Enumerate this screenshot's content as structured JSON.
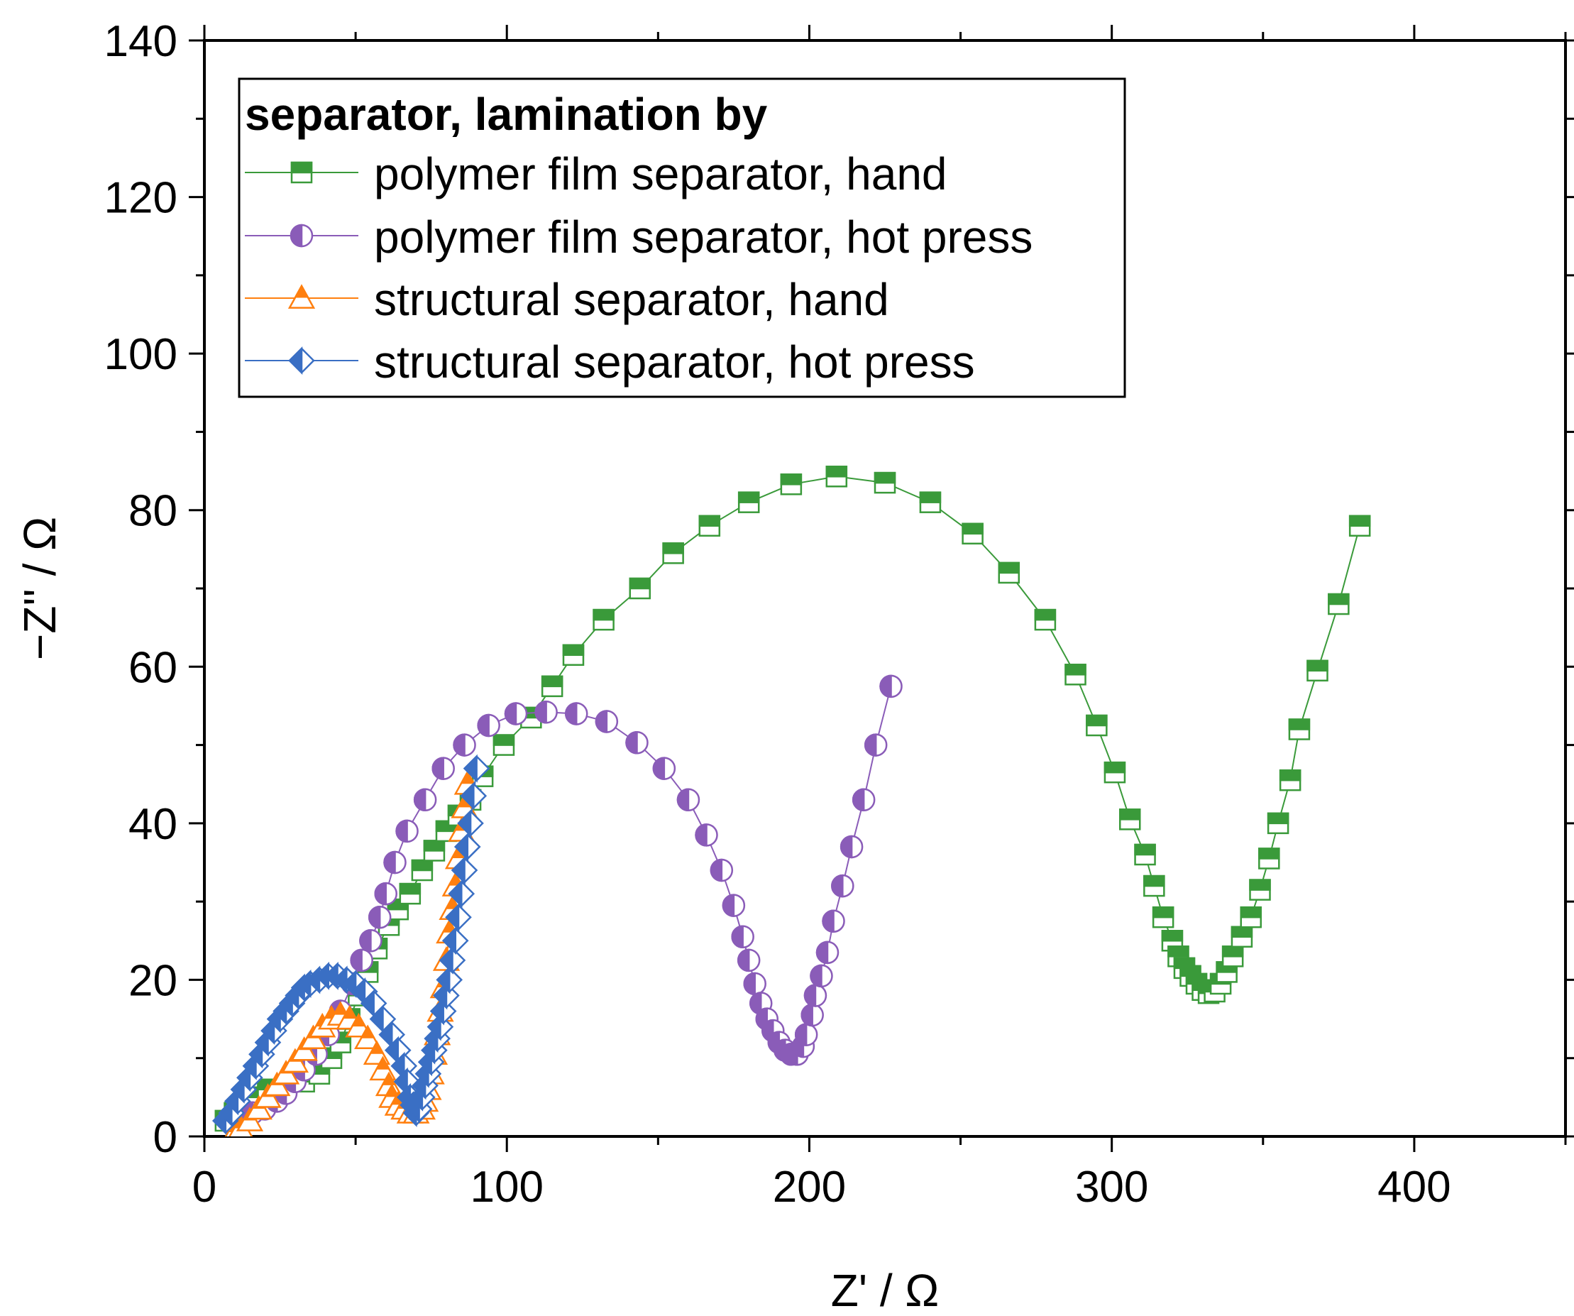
{
  "chart_data": {
    "type": "scatter",
    "title": "",
    "xlabel": "Z' / Ω",
    "ylabel": "−Z'' / Ω",
    "xlim": [
      0,
      450
    ],
    "ylim": [
      0,
      140
    ],
    "x_major_ticks": [
      0,
      100,
      200,
      300,
      400
    ],
    "x_minor_ticks": [
      50,
      150,
      250,
      350,
      450
    ],
    "y_major_ticks": [
      0,
      20,
      40,
      60,
      80,
      100,
      120,
      140
    ],
    "y_minor_ticks": [
      10,
      30,
      50,
      70,
      90,
      110,
      130
    ],
    "x_tick_labels": [
      "0",
      "100",
      "200",
      "300",
      "400"
    ],
    "y_tick_labels": [
      "0",
      "20",
      "40",
      "60",
      "80",
      "100",
      "120",
      "140"
    ],
    "grid": false,
    "legend": {
      "title": "separator, lamination by",
      "position": "top-left"
    },
    "series": [
      {
        "name": "polymer film separator, hand",
        "color": "#3a9a3a",
        "marker": "square-half-top",
        "points": [
          [
            7,
            2
          ],
          [
            10,
            3
          ],
          [
            13,
            4
          ],
          [
            17,
            5
          ],
          [
            21,
            6
          ],
          [
            27,
            6.5
          ],
          [
            33,
            7
          ],
          [
            38,
            8
          ],
          [
            42,
            10
          ],
          [
            45,
            12
          ],
          [
            48,
            15
          ],
          [
            51,
            18
          ],
          [
            54,
            21
          ],
          [
            57,
            24
          ],
          [
            61,
            27
          ],
          [
            64,
            29
          ],
          [
            68,
            31
          ],
          [
            72,
            34
          ],
          [
            76,
            36.5
          ],
          [
            80,
            39
          ],
          [
            84,
            41
          ],
          [
            88,
            43
          ],
          [
            92,
            46
          ],
          [
            99,
            50
          ],
          [
            108,
            53.5
          ],
          [
            115,
            57.5
          ],
          [
            122,
            61.5
          ],
          [
            132,
            66
          ],
          [
            144,
            70
          ],
          [
            155,
            74.5
          ],
          [
            167,
            78
          ],
          [
            180,
            81
          ],
          [
            194,
            83.3
          ],
          [
            209,
            84.3
          ],
          [
            225,
            83.5
          ],
          [
            240,
            81
          ],
          [
            254,
            77
          ],
          [
            266,
            72
          ],
          [
            278,
            66
          ],
          [
            288,
            59
          ],
          [
            295,
            52.5
          ],
          [
            301,
            46.5
          ],
          [
            306,
            40.5
          ],
          [
            311,
            36
          ],
          [
            314,
            32
          ],
          [
            317,
            28
          ],
          [
            320,
            25
          ],
          [
            322,
            23
          ],
          [
            324,
            21.5
          ],
          [
            326,
            20.5
          ],
          [
            328,
            19.5
          ],
          [
            330,
            18.7
          ],
          [
            332,
            18.3
          ],
          [
            334,
            18.5
          ],
          [
            336,
            19.5
          ],
          [
            338,
            21
          ],
          [
            340,
            23
          ],
          [
            343,
            25.5
          ],
          [
            346,
            28
          ],
          [
            349,
            31.5
          ],
          [
            352,
            35.5
          ],
          [
            355,
            40
          ],
          [
            359,
            45.5
          ],
          [
            362,
            52
          ],
          [
            368,
            59.5
          ],
          [
            375,
            68
          ],
          [
            382,
            78
          ]
        ]
      },
      {
        "name": "polymer film separator, hot press",
        "color": "#8a5cb8",
        "marker": "circle-half-left",
        "points": [
          [
            10,
            2
          ],
          [
            12,
            2
          ],
          [
            16,
            3
          ],
          [
            20,
            3.5
          ],
          [
            24,
            4.5
          ],
          [
            27,
            5.5
          ],
          [
            30,
            7
          ],
          [
            33,
            8.5
          ],
          [
            37,
            10.5
          ],
          [
            41,
            13
          ],
          [
            45,
            16
          ],
          [
            49,
            19.5
          ],
          [
            52,
            22.5
          ],
          [
            55,
            25
          ],
          [
            58,
            28
          ],
          [
            60,
            31
          ],
          [
            63,
            35
          ],
          [
            67,
            39
          ],
          [
            73,
            43
          ],
          [
            79,
            47
          ],
          [
            86,
            50
          ],
          [
            94,
            52.5
          ],
          [
            103,
            54
          ],
          [
            113,
            54.2
          ],
          [
            123,
            54
          ],
          [
            133,
            53
          ],
          [
            143,
            50.3
          ],
          [
            152,
            47
          ],
          [
            160,
            43
          ],
          [
            166,
            38.5
          ],
          [
            171,
            34
          ],
          [
            175,
            29.5
          ],
          [
            178,
            25.5
          ],
          [
            180,
            22.5
          ],
          [
            182,
            19.5
          ],
          [
            184,
            17
          ],
          [
            186,
            15
          ],
          [
            188,
            13.5
          ],
          [
            190,
            12
          ],
          [
            192,
            11
          ],
          [
            194,
            10.5
          ],
          [
            196,
            10.5
          ],
          [
            198,
            11.5
          ],
          [
            199,
            13
          ],
          [
            201,
            15.5
          ],
          [
            202,
            18
          ],
          [
            204,
            20.5
          ],
          [
            206,
            23.5
          ],
          [
            208,
            27.5
          ],
          [
            211,
            32
          ],
          [
            214,
            37
          ],
          [
            218,
            43
          ],
          [
            222,
            50
          ],
          [
            227,
            57.5
          ]
        ]
      },
      {
        "name": "structural separator, hand",
        "color": "#ff7f0e",
        "marker": "triangle-half-top",
        "points": [
          [
            10,
            0.5
          ],
          [
            12,
            1
          ],
          [
            15,
            2
          ],
          [
            18,
            3.5
          ],
          [
            21,
            5
          ],
          [
            24,
            6.5
          ],
          [
            27,
            8
          ],
          [
            30,
            9.5
          ],
          [
            33,
            11
          ],
          [
            36,
            12.5
          ],
          [
            39,
            14
          ],
          [
            42,
            15
          ],
          [
            45,
            15.5
          ],
          [
            48,
            15
          ],
          [
            51,
            14
          ],
          [
            54,
            12.5
          ],
          [
            57,
            10.5
          ],
          [
            59,
            8.5
          ],
          [
            61,
            6.5
          ],
          [
            62,
            5
          ],
          [
            64,
            4
          ],
          [
            66,
            3.5
          ],
          [
            68,
            3
          ],
          [
            70,
            3
          ],
          [
            72,
            3.5
          ],
          [
            73,
            4.5
          ],
          [
            74,
            6
          ],
          [
            75,
            8
          ],
          [
            76,
            10.5
          ],
          [
            77,
            13
          ],
          [
            78,
            16
          ],
          [
            79,
            19
          ],
          [
            80,
            22.5
          ],
          [
            81,
            26
          ],
          [
            82,
            29
          ],
          [
            83,
            32
          ],
          [
            84,
            35.5
          ],
          [
            85,
            39
          ],
          [
            86,
            42
          ],
          [
            87,
            45
          ]
        ]
      },
      {
        "name": "structural separator, hot press",
        "color": "#3a6fc4",
        "marker": "diamond-half-left",
        "points": [
          [
            7,
            2
          ],
          [
            9,
            3
          ],
          [
            11,
            4.5
          ],
          [
            13,
            6
          ],
          [
            15,
            7.5
          ],
          [
            17,
            9
          ],
          [
            19,
            10.5
          ],
          [
            21,
            12
          ],
          [
            23,
            13.5
          ],
          [
            25,
            15
          ],
          [
            27,
            16
          ],
          [
            29,
            17
          ],
          [
            31,
            18
          ],
          [
            33,
            19
          ],
          [
            35,
            19.5
          ],
          [
            38,
            20
          ],
          [
            41,
            20.5
          ],
          [
            44,
            20.5
          ],
          [
            47,
            20
          ],
          [
            50,
            19.5
          ],
          [
            53,
            18.5
          ],
          [
            56,
            17
          ],
          [
            59,
            15
          ],
          [
            62,
            13
          ],
          [
            64,
            11
          ],
          [
            66,
            9
          ],
          [
            67,
            7
          ],
          [
            68,
            5
          ],
          [
            69,
            4
          ],
          [
            70,
            3
          ],
          [
            71,
            3.5
          ],
          [
            72,
            5
          ],
          [
            73,
            6.5
          ],
          [
            74,
            8
          ],
          [
            75,
            9.5
          ],
          [
            76,
            11
          ],
          [
            77,
            12.5
          ],
          [
            78,
            14
          ],
          [
            79,
            16
          ],
          [
            80,
            18
          ],
          [
            81,
            20
          ],
          [
            82,
            22.5
          ],
          [
            83,
            25
          ],
          [
            84,
            28
          ],
          [
            85,
            31
          ],
          [
            86,
            34
          ],
          [
            87,
            37
          ],
          [
            88,
            40
          ],
          [
            89,
            43.5
          ],
          [
            90,
            47
          ]
        ]
      }
    ]
  }
}
